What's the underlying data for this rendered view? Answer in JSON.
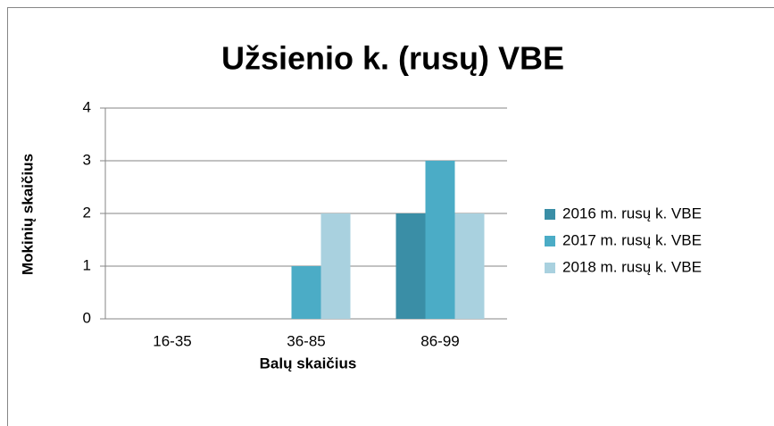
{
  "chart_data": {
    "type": "bar",
    "title": "Užsienio k. (rusų) VBE",
    "x_label": "Balų skaičius",
    "y_label": "Mokinių skaičius",
    "categories": [
      "16-35",
      "36-85",
      "86-99"
    ],
    "series": [
      {
        "name": "2016 m. rusų k. VBE",
        "color": "#3a8ea6",
        "values": [
          0,
          0,
          2
        ]
      },
      {
        "name": "2017 m. rusų k. VBE",
        "color": "#4bacc6",
        "values": [
          0,
          1,
          3
        ]
      },
      {
        "name": "2018 m. rusų k. VBE",
        "color": "#a9d1df",
        "values": [
          0,
          2,
          2
        ]
      }
    ],
    "ylim": [
      0,
      4
    ],
    "yticks": [
      0,
      1,
      2,
      3,
      4
    ],
    "grid": true,
    "legend": "right"
  }
}
